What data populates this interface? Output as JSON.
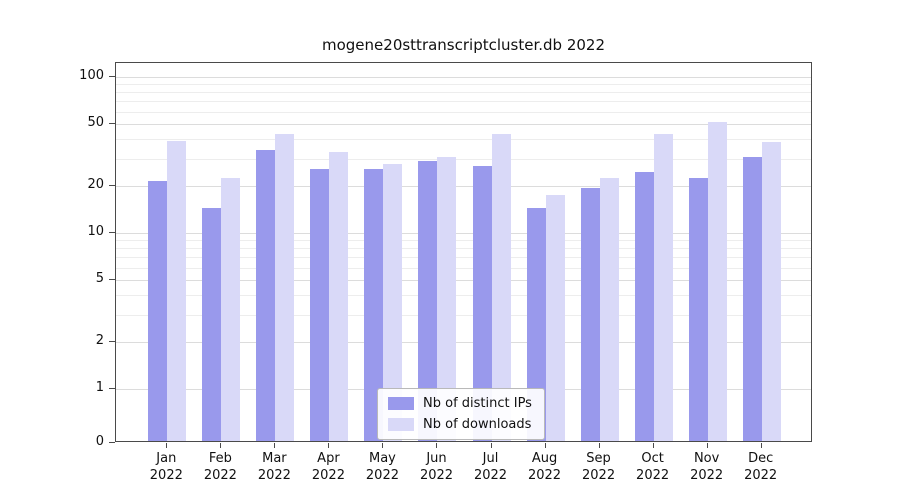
{
  "title": "mogene20sttranscriptcluster.db 2022",
  "chart_data": {
    "type": "bar",
    "title": "mogene20sttranscriptcluster.db 2022",
    "categories": [
      "Jan 2022",
      "Feb 2022",
      "Mar 2022",
      "Apr 2022",
      "May 2022",
      "Jun 2022",
      "Jul 2022",
      "Aug 2022",
      "Sep 2022",
      "Oct 2022",
      "Nov 2022",
      "Dec 2022"
    ],
    "series": [
      {
        "name": "Nb of distinct IPs",
        "color": "#9999ec",
        "values": [
          21,
          14,
          33,
          25,
          25,
          28,
          26,
          14,
          19,
          24,
          22,
          30
        ]
      },
      {
        "name": "Nb of downloads",
        "color": "#d9d9f8",
        "values": [
          38,
          22,
          42,
          32,
          27,
          30,
          42,
          17,
          22,
          42,
          50,
          37
        ]
      }
    ],
    "yscale": "log",
    "yticks": [
      0,
      1,
      2,
      5,
      10,
      20,
      50,
      100
    ],
    "ylim": [
      0,
      120
    ],
    "xlabel": "",
    "ylabel": "",
    "grid": true,
    "legend_position": "bottom-center"
  }
}
